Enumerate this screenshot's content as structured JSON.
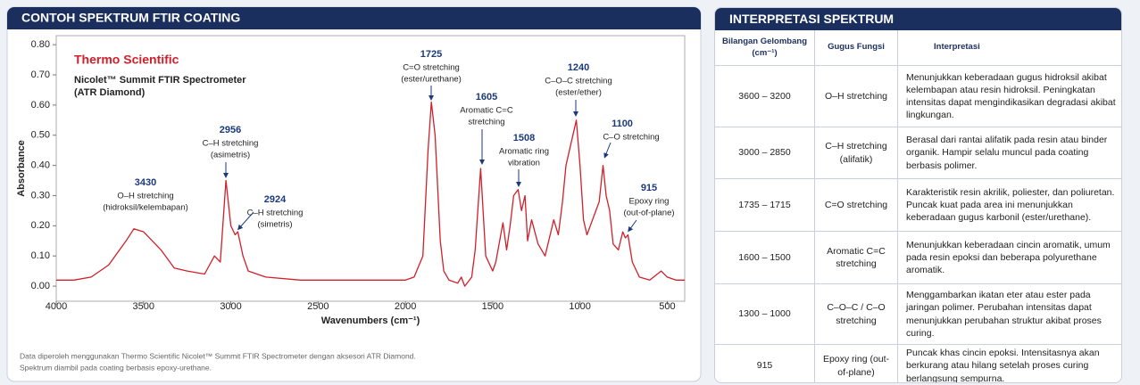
{
  "chart_data": {
    "type": "line",
    "title": "CONTOH SPEKTRUM FTIR COATING",
    "brand": "Thermo Scientific",
    "instrument": [
      "Nicolet™ Summit FTIR Spectrometer",
      "(ATR Diamond)"
    ],
    "x_label": "Wavenumbers (cm⁻¹)",
    "y_label": "Absorbance",
    "xlim": [
      4000,
      400
    ],
    "ylim": [
      -0.05,
      0.83
    ],
    "xticks": [
      4000,
      3500,
      3000,
      2500,
      2000,
      1500,
      1000,
      500
    ],
    "yticks": [
      {
        "value": 0,
        "label": "0.00"
      },
      {
        "value": 0.1,
        "label": "0.10"
      },
      {
        "value": 0.2,
        "label": "0.20"
      },
      {
        "value": 0.3,
        "label": "0.30"
      },
      {
        "value": 0.4,
        "label": "0.40"
      },
      {
        "value": 0.5,
        "label": "0.50"
      },
      {
        "value": 0.6,
        "label": "0.60"
      },
      {
        "value": 0.7,
        "label": "0.70"
      },
      {
        "value": 0.8,
        "label": "0.80"
      }
    ],
    "series": [
      {
        "color": "#d0202a",
        "x": [
          4000,
          3900,
          3800,
          3700,
          3600,
          3555,
          3500,
          3400,
          3324,
          3250,
          3150,
          3094,
          3060,
          3028,
          3000,
          2975,
          2960,
          2930,
          2900,
          2800,
          2600,
          2400,
          2200,
          2000,
          1950,
          1900,
          1870,
          1851,
          1830,
          1800,
          1780,
          1750,
          1700,
          1680,
          1660,
          1620,
          1600,
          1569,
          1540,
          1500,
          1482,
          1441,
          1420,
          1400,
          1380,
          1354,
          1335,
          1315,
          1300,
          1277,
          1240,
          1200,
          1150,
          1124,
          1100,
          1080,
          1021,
          1000,
          980,
          960,
          909,
          890,
          868,
          850,
          830,
          810,
          780,
          755,
          740,
          725,
          700,
          660,
          600,
          535,
          500,
          450,
          400
        ],
        "values": [
          0.02,
          0.02,
          0.03,
          0.07,
          0.15,
          0.19,
          0.18,
          0.12,
          0.06,
          0.05,
          0.04,
          0.1,
          0.08,
          0.35,
          0.2,
          0.17,
          0.18,
          0.1,
          0.05,
          0.03,
          0.02,
          0.02,
          0.02,
          0.02,
          0.03,
          0.1,
          0.45,
          0.61,
          0.5,
          0.15,
          0.05,
          0.02,
          0.01,
          0.03,
          0.0,
          0.03,
          0.12,
          0.39,
          0.1,
          0.05,
          0.08,
          0.21,
          0.12,
          0.2,
          0.3,
          0.32,
          0.25,
          0.3,
          0.15,
          0.22,
          0.14,
          0.1,
          0.22,
          0.17,
          0.28,
          0.4,
          0.55,
          0.4,
          0.22,
          0.17,
          0.25,
          0.28,
          0.4,
          0.3,
          0.25,
          0.14,
          0.12,
          0.18,
          0.16,
          0.17,
          0.08,
          0.03,
          0.02,
          0.05,
          0.03,
          0.02,
          0.02
        ]
      }
    ],
    "annotations": [
      {
        "label": "3430",
        "text": [
          "O–H stretching",
          "(hidroksil/kelembapan)"
        ]
      },
      {
        "label": "2956",
        "text": [
          "C–H stretching",
          "(asimetris)"
        ]
      },
      {
        "label": "2924",
        "text": [
          "C–H stretching",
          "(simetris)"
        ]
      },
      {
        "label": "1725",
        "text": [
          "C=O stretching",
          "(ester/urethane)"
        ]
      },
      {
        "label": "1605",
        "text": [
          "Aromatic C=C",
          "stretching"
        ]
      },
      {
        "label": "1508",
        "text": [
          "Aromatic ring",
          "vibration"
        ]
      },
      {
        "label": "1240",
        "text": [
          "C–O–C stretching",
          "(ester/ether)"
        ]
      },
      {
        "label": "1100",
        "text": [
          "C–O stretching"
        ]
      },
      {
        "label": "915",
        "text": [
          "Epoxy ring",
          "(out-of-plane)"
        ]
      }
    ],
    "footnote": [
      "Data diperoleh menggunakan Thermo Scientific Nicolet™ Summit FTIR Spectrometer dengan aksesori ATR Diamond.",
      "Spektrum diambil pada coating berbasis epoxy-urethane."
    ]
  },
  "table": {
    "title": "INTERPRETASI SPEKTRUM",
    "header": [
      "Bilangan Gelombang (cm⁻¹)",
      "Gugus Fungsi",
      "Interpretasi"
    ],
    "rows": [
      [
        "3600 – 3200",
        "O–H stretching",
        "Menunjukkan keberadaan gugus hidroksil akibat kelembapan atau resin hidroksil. Peningkatan intensitas dapat mengindikasikan degradasi akibat lingkungan."
      ],
      [
        "3000 – 2850",
        "C–H stretching (alifatik)",
        "Berasal dari rantai alifatik pada resin atau binder organik. Hampir selalu muncul pada coating berbasis polimer."
      ],
      [
        "1735 – 1715",
        "C=O stretching",
        "Karakteristik resin akrilik, poliester, dan poliuretan. Puncak kuat pada area ini menunjukkan keberadaan gugus karbonil (ester/urethane)."
      ],
      [
        "1600 – 1500",
        "Aromatic C=C stretching",
        "Menunjukkan keberadaan cincin aromatik, umum pada resin epoksi dan beberapa polyurethane aromatik."
      ],
      [
        "1300 – 1000",
        "C–O–C / C–O stretching",
        "Menggambarkan ikatan eter atau ester pada jaringan polimer. Perubahan intensitas dapat menunjukkan perubahan struktur akibat proses curing."
      ],
      [
        "915",
        "Epoxy ring (out-of-plane)",
        "Puncak khas cincin epoksi. Intensitasnya akan berkurang atau hilang setelah proses curing berlangsung sempurna."
      ]
    ]
  }
}
